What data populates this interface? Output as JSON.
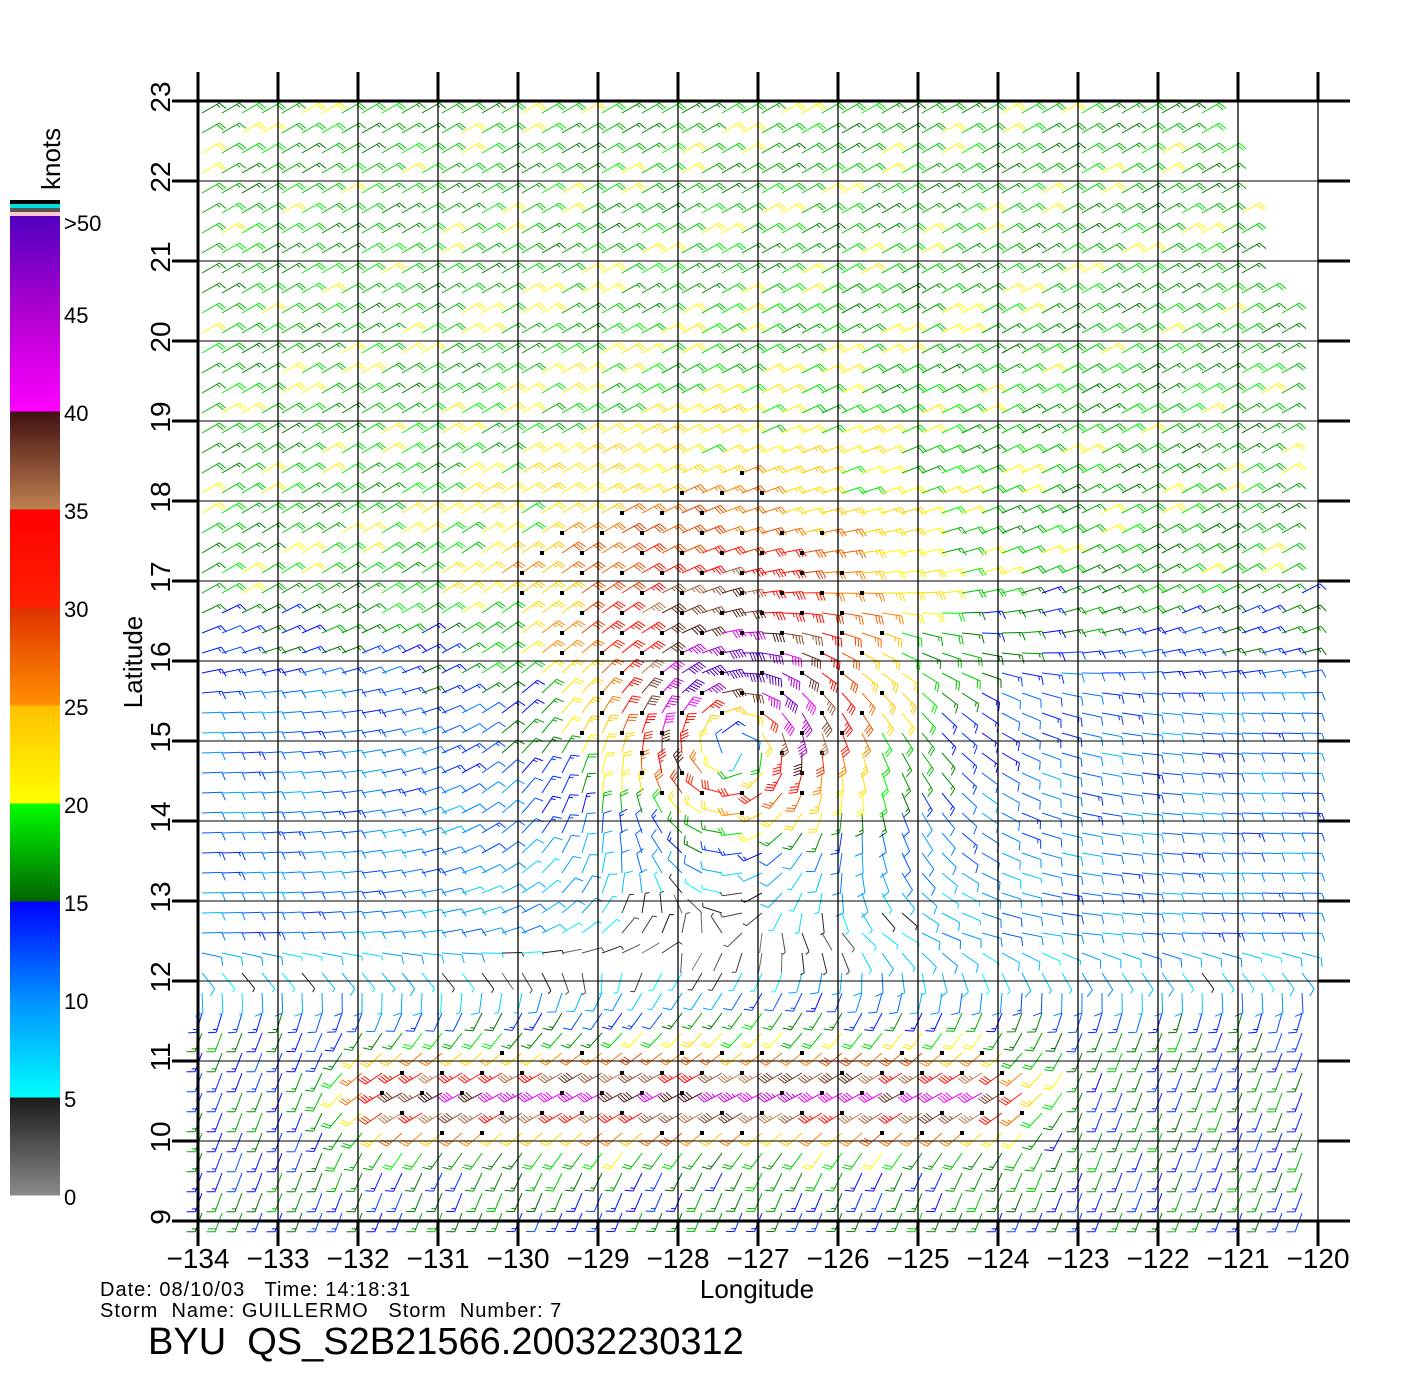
{
  "chart_data": {
    "type": "wind-barb",
    "xlabel": "Longitude",
    "ylabel": "Latitude",
    "xlim": [
      -134,
      -120
    ],
    "ylim": [
      9,
      23
    ],
    "grid": true,
    "x_ticks": [
      -134,
      -133,
      -132,
      -131,
      -130,
      -129,
      -128,
      -127,
      -126,
      -125,
      -124,
      -123,
      -122,
      -121,
      -120
    ],
    "x_tick_labels": [
      "−134",
      "−133",
      "−132",
      "−131",
      "−130",
      "−129",
      "−128",
      "−127",
      "−126",
      "−125",
      "−124",
      "−123",
      "−122",
      "−121",
      "−120"
    ],
    "y_ticks": [
      9,
      10,
      11,
      12,
      13,
      14,
      15,
      16,
      17,
      18,
      19,
      20,
      21,
      22,
      23
    ],
    "y_tick_labels": [
      "9",
      "10",
      "11",
      "12",
      "13",
      "14",
      "15",
      "16",
      "17",
      "18",
      "19",
      "20",
      "21",
      "22",
      "23"
    ],
    "colorbar": {
      "unit_label": "knots",
      "placement": "left",
      "tick_values": [
        0,
        5,
        10,
        15,
        20,
        25,
        30,
        35,
        40,
        45,
        50
      ],
      "tick_labels": [
        "0",
        "5",
        "10",
        "15",
        "20",
        "25",
        "30",
        "35",
        "40",
        "45",
        ">50"
      ],
      "stops": [
        {
          "from": 0,
          "to": 5,
          "c0": "#8a8a8a",
          "c1": "#1a1a1a"
        },
        {
          "from": 5,
          "to": 10,
          "c0": "#00ffff",
          "c1": "#0090ff"
        },
        {
          "from": 10,
          "to": 15,
          "c0": "#0090ff",
          "c1": "#0000ff"
        },
        {
          "from": 15,
          "to": 20,
          "c0": "#006400",
          "c1": "#00ff00"
        },
        {
          "from": 20,
          "to": 25,
          "c0": "#ffff00",
          "c1": "#ffc000"
        },
        {
          "from": 25,
          "to": 30,
          "c0": "#ff9000",
          "c1": "#e03000"
        },
        {
          "from": 30,
          "to": 35,
          "c0": "#ff2000",
          "c1": "#ff0000"
        },
        {
          "from": 35,
          "to": 40,
          "c0": "#c08050",
          "c1": "#401010"
        },
        {
          "from": 40,
          "to": 45,
          "c0": "#ff00ff",
          "c1": "#b000d0"
        },
        {
          "from": 45,
          "to": 50,
          "c0": "#b000d0",
          "c1": "#5000c0"
        }
      ]
    },
    "wind_field": {
      "grid_spacing_deg": 0.25,
      "storm_center": {
        "lon": -127.3,
        "lat": 15.1
      },
      "storm_max_wind_kt": 44,
      "storm_radius_max_wind_deg": 0.8,
      "background": [
        {
          "lat_min": 16,
          "lat_max": 24,
          "from_dir_deg": 60,
          "speed_kt": 18
        },
        {
          "lat_min": 12,
          "lat_max": 16,
          "from_dir_deg": 90,
          "speed_kt": 11
        },
        {
          "lat_min": 8,
          "lat_max": 12,
          "from_dir_deg": 200,
          "speed_kt": 15
        }
      ],
      "westerly_band": {
        "lat": 10.6,
        "lon_min": -132.5,
        "lon_max": -123,
        "speed_kt": 30
      }
    }
  },
  "footer": {
    "date_line": "Date: 08/10/03   Time: 14:18:31",
    "storm_line": "Storm  Name: GUILLERMO   Storm  Number: 7",
    "title": "BYU  QS_S2B21566.20032230312"
  }
}
